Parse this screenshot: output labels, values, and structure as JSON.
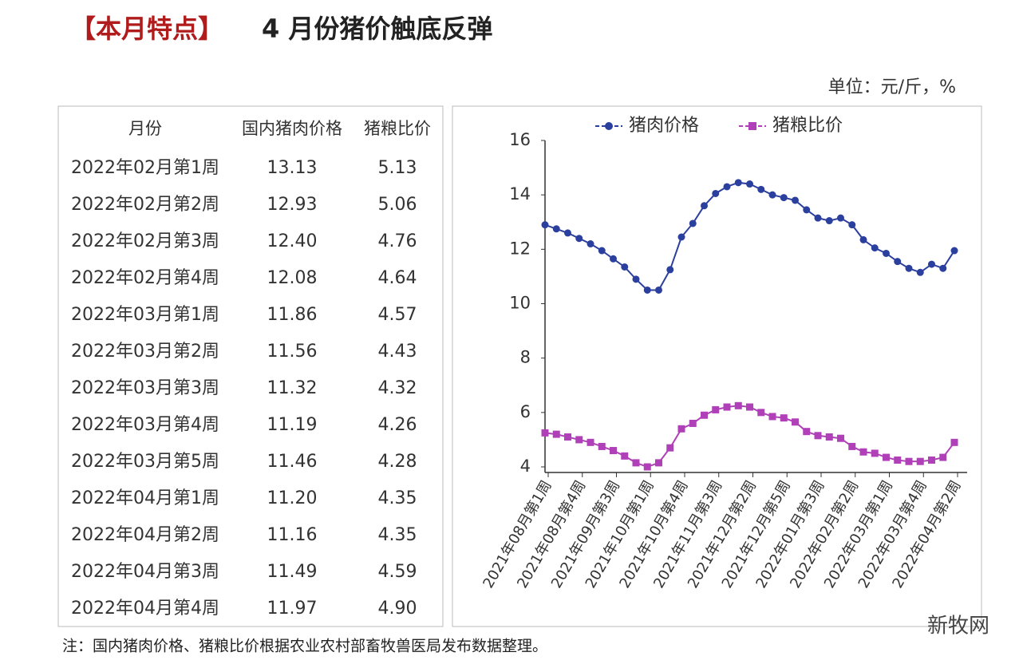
{
  "header": {
    "tag": "【本月特点】",
    "title": "4 月份猪价触底反弹",
    "unit": "单位：元/斤，%"
  },
  "table": {
    "columns": [
      "月份",
      "国内猪肉价格",
      "猪粮比价"
    ],
    "rows": [
      [
        "2022年02月第1周",
        "13.13",
        "5.13"
      ],
      [
        "2022年02月第2周",
        "12.93",
        "5.06"
      ],
      [
        "2022年02月第3周",
        "12.40",
        "4.76"
      ],
      [
        "2022年02月第4周",
        "12.08",
        "4.64"
      ],
      [
        "2022年03月第1周",
        "11.86",
        "4.57"
      ],
      [
        "2022年03月第2周",
        "11.56",
        "4.43"
      ],
      [
        "2022年03月第3周",
        "11.32",
        "4.32"
      ],
      [
        "2022年03月第4周",
        "11.19",
        "4.26"
      ],
      [
        "2022年03月第5周",
        "11.46",
        "4.28"
      ],
      [
        "2022年04月第1周",
        "11.20",
        "4.35"
      ],
      [
        "2022年04月第2周",
        "11.16",
        "4.35"
      ],
      [
        "2022年04月第3周",
        "11.49",
        "4.59"
      ],
      [
        "2022年04月第4周",
        "11.97",
        "4.90"
      ]
    ]
  },
  "chart_data": {
    "type": "line",
    "categories": [
      "2021年08月第1周",
      null,
      null,
      "2021年08月第4周",
      null,
      null,
      "2021年09月第3周",
      null,
      null,
      "2021年10月第1周",
      null,
      null,
      "2021年10月第4周",
      null,
      null,
      "2021年11月第3周",
      null,
      null,
      "2021年12月第2周",
      null,
      null,
      "2021年12月第5周",
      null,
      null,
      "2022年01月第3周",
      null,
      null,
      "2022年02月第2周",
      null,
      null,
      "2022年03月第1周",
      null,
      null,
      "2022年03月第4周",
      null,
      null,
      "2022年04月第2周"
    ],
    "series": [
      {
        "name": "猪肉价格",
        "color": "#2b3f9e",
        "marker": "circle",
        "values": [
          12.9,
          12.75,
          12.6,
          12.4,
          12.2,
          11.95,
          11.65,
          11.35,
          10.9,
          10.5,
          10.5,
          11.25,
          12.45,
          12.95,
          13.6,
          14.05,
          14.3,
          14.45,
          14.4,
          14.2,
          14.0,
          13.9,
          13.8,
          13.45,
          13.15,
          13.05,
          13.15,
          12.9,
          12.35,
          12.05,
          11.85,
          11.55,
          11.3,
          11.15,
          11.45,
          11.3,
          11.95
        ]
      },
      {
        "name": "猪粮比价",
        "color": "#b040b8",
        "marker": "square",
        "values": [
          5.25,
          5.2,
          5.1,
          5.0,
          4.9,
          4.75,
          4.6,
          4.4,
          4.15,
          4.0,
          4.15,
          4.7,
          5.4,
          5.6,
          5.9,
          6.1,
          6.2,
          6.25,
          6.2,
          6.0,
          5.85,
          5.8,
          5.65,
          5.3,
          5.15,
          5.1,
          5.05,
          4.75,
          4.55,
          4.5,
          4.35,
          4.25,
          4.2,
          4.2,
          4.25,
          4.35,
          4.9
        ]
      }
    ],
    "ylim": [
      4,
      16
    ],
    "yticks": [
      4,
      6,
      8,
      10,
      12,
      14,
      16
    ],
    "grid": false,
    "legend": "top"
  },
  "footer": {
    "note": "注：国内猪肉价格、猪粮比价根据农业农村部畜牧兽医局发布数据整理。",
    "watermark": "新牧网"
  }
}
